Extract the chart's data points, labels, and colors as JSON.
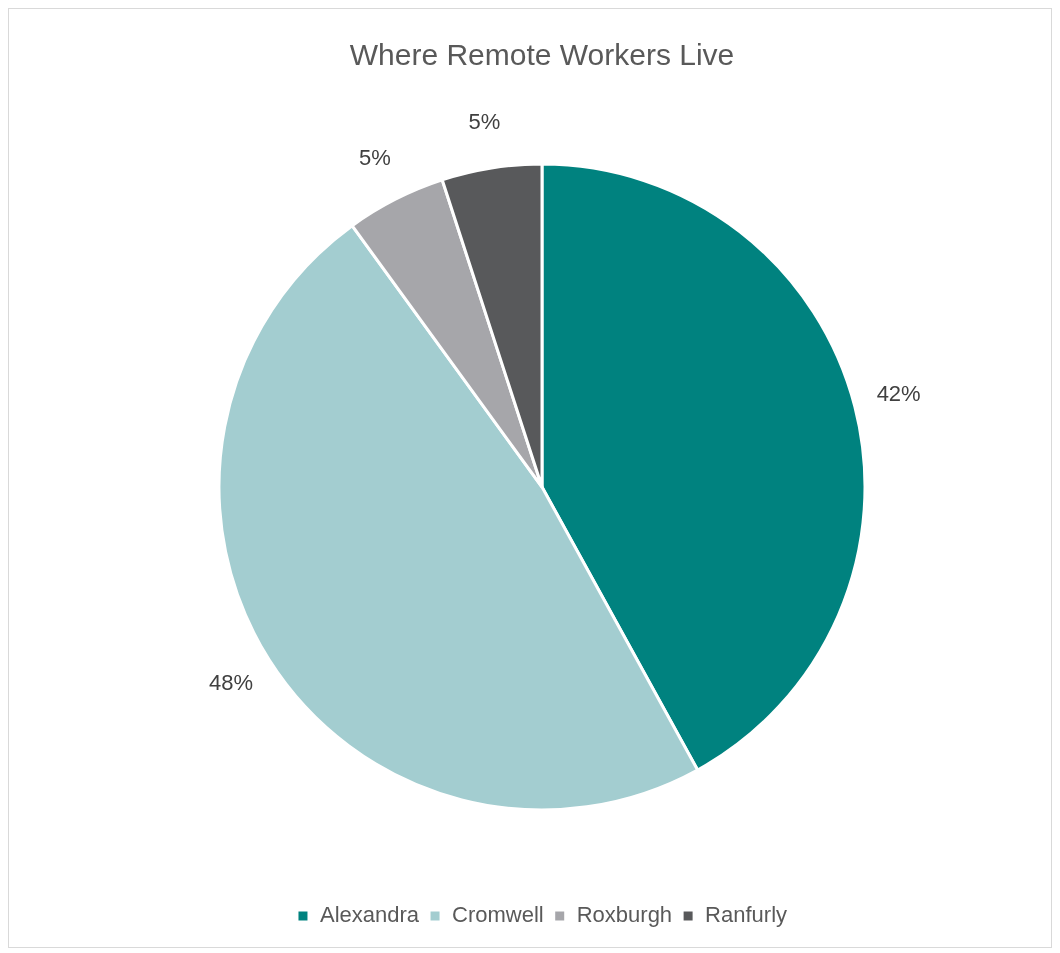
{
  "chart_data": {
    "type": "pie",
    "title": "Where Remote Workers Live",
    "categories": [
      "Alexandra",
      "Cromwell",
      "Roxburgh",
      "Ranfurly"
    ],
    "values": [
      42,
      48,
      5,
      5
    ],
    "colors": [
      "#00827f",
      "#a3cdd0",
      "#a6a6aa",
      "#58595b"
    ],
    "value_labels": [
      "42%",
      "48%",
      "5%",
      "5%"
    ],
    "legend": "bottom"
  }
}
